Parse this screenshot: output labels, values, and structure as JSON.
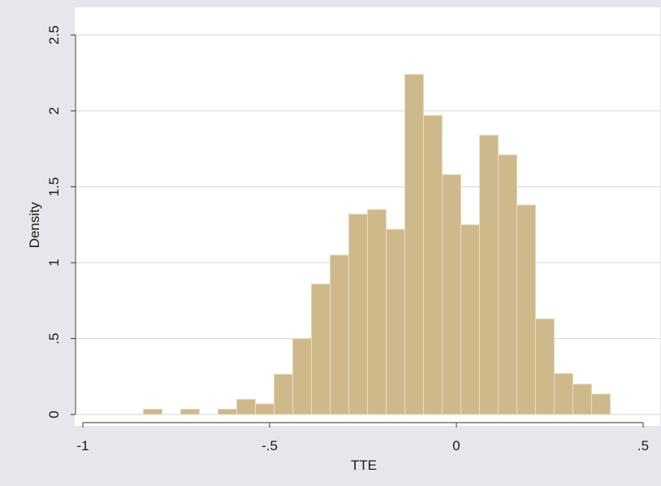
{
  "chart_data": {
    "type": "bar",
    "subtype": "histogram",
    "title": "",
    "xlabel": "TTE",
    "ylabel": "Density",
    "xlim": [
      -1,
      0.5
    ],
    "ylim": [
      0,
      2.5
    ],
    "x_ticks": [
      {
        "value": -1,
        "label": "-1"
      },
      {
        "value": -0.5,
        "label": "-.5"
      },
      {
        "value": 0,
        "label": "0"
      },
      {
        "value": 0.5,
        "label": ".5"
      }
    ],
    "y_ticks": [
      {
        "value": 0,
        "label": "0"
      },
      {
        "value": 0.5,
        "label": ".5"
      },
      {
        "value": 1,
        "label": "1"
      },
      {
        "value": 1.5,
        "label": "1.5"
      },
      {
        "value": 2,
        "label": "2"
      },
      {
        "value": 2.5,
        "label": "2.5"
      }
    ],
    "bins": [
      {
        "x0": -0.838,
        "x1": -0.788,
        "value": 0.035
      },
      {
        "x0": -0.738,
        "x1": -0.688,
        "value": 0.035
      },
      {
        "x0": -0.638,
        "x1": -0.588,
        "value": 0.035
      },
      {
        "x0": -0.588,
        "x1": -0.538,
        "value": 0.1
      },
      {
        "x0": -0.538,
        "x1": -0.488,
        "value": 0.07
      },
      {
        "x0": -0.488,
        "x1": -0.438,
        "value": 0.265
      },
      {
        "x0": -0.438,
        "x1": -0.388,
        "value": 0.5
      },
      {
        "x0": -0.388,
        "x1": -0.338,
        "value": 0.86
      },
      {
        "x0": -0.338,
        "x1": -0.288,
        "value": 1.05
      },
      {
        "x0": -0.288,
        "x1": -0.238,
        "value": 1.32
      },
      {
        "x0": -0.238,
        "x1": -0.188,
        "value": 1.35
      },
      {
        "x0": -0.188,
        "x1": -0.138,
        "value": 1.22
      },
      {
        "x0": -0.138,
        "x1": -0.088,
        "value": 2.24
      },
      {
        "x0": -0.088,
        "x1": -0.038,
        "value": 1.97
      },
      {
        "x0": -0.038,
        "x1": 0.012,
        "value": 1.58
      },
      {
        "x0": 0.012,
        "x1": 0.062,
        "value": 1.25
      },
      {
        "x0": 0.062,
        "x1": 0.112,
        "value": 1.84
      },
      {
        "x0": 0.112,
        "x1": 0.162,
        "value": 1.71
      },
      {
        "x0": 0.162,
        "x1": 0.212,
        "value": 1.38
      },
      {
        "x0": 0.212,
        "x1": 0.262,
        "value": 0.63
      },
      {
        "x0": 0.262,
        "x1": 0.312,
        "value": 0.27
      },
      {
        "x0": 0.312,
        "x1": 0.362,
        "value": 0.2
      },
      {
        "x0": 0.362,
        "x1": 0.412,
        "value": 0.135
      }
    ],
    "grid": true,
    "legend": "none",
    "colors": {
      "page_background": "#e6e7ec",
      "plot_background": "#ffffff",
      "bar_fill": "#cdb98a",
      "bar_outline": "#e9dcc0",
      "grid": "#d3d6dc",
      "axis": "#333333"
    }
  }
}
